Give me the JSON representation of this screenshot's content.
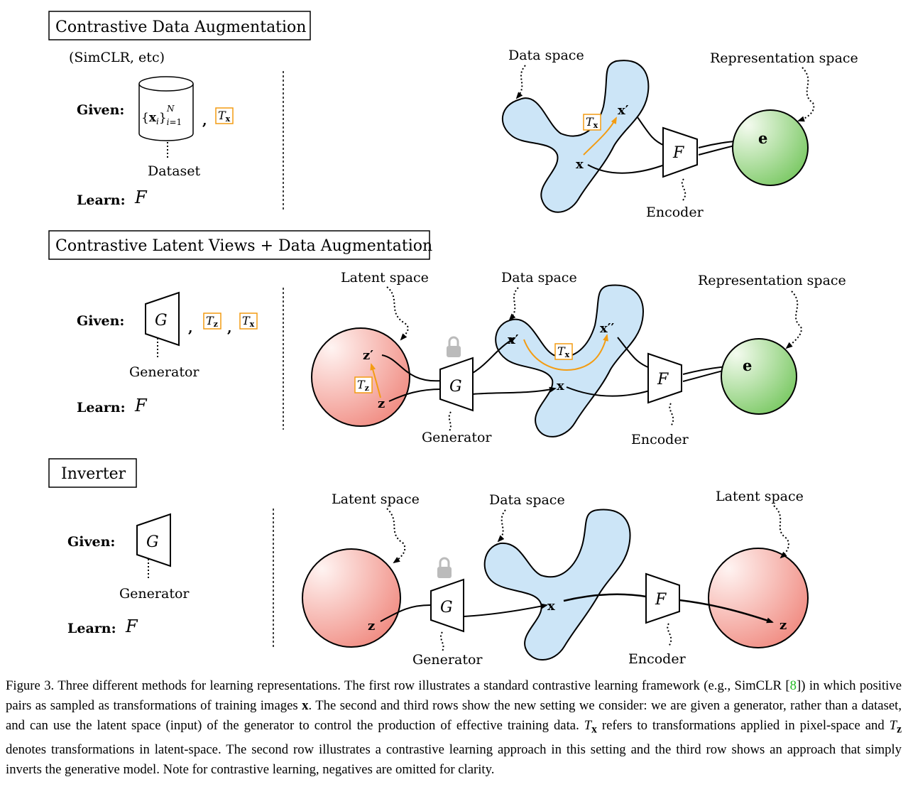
{
  "rows": [
    {
      "title": "Contrastive Data Augmentation",
      "subtitle": "(SimCLR, etc)",
      "given_label": "Given:",
      "dataset_formula": "{x_i}_{i=1}^N",
      "dataset_label": "Dataset",
      "learn_label": "Learn:",
      "learn_symbol": "F",
      "comma": ",",
      "tx_label": "T",
      "tx_sub": "x"
    },
    {
      "title": "Contrastive Latent Views + Data Augmentation",
      "given_label": "Given:",
      "generator_symbol": "G",
      "generator_label": "Generator",
      "learn_label": "Learn:",
      "learn_symbol": "F",
      "comma": ",",
      "tz_label": "T",
      "tz_sub": "z",
      "tx_label": "T",
      "tx_sub": "x"
    },
    {
      "title": "Inverter",
      "given_label": "Given:",
      "generator_symbol": "G",
      "generator_label": "Generator",
      "learn_label": "Learn:",
      "learn_symbol": "F"
    }
  ],
  "diagram1": {
    "data_space": "Data space",
    "representation_space": "Representation space",
    "encoder": "Encoder",
    "x": "x",
    "x_prime": "x′",
    "e": "e",
    "F": "F",
    "tx": "T",
    "tx_sub": "x"
  },
  "diagram2": {
    "latent_space": "Latent space",
    "data_space": "Data space",
    "representation_space": "Representation space",
    "generator": "Generator",
    "encoder": "Encoder",
    "z": "z",
    "z_prime": "z′",
    "x": "x",
    "x_prime": "x′",
    "x_dprime": "x′′",
    "e": "e",
    "G": "G",
    "F": "F",
    "tz": "T",
    "tz_sub": "z",
    "tx": "T",
    "tx_sub": "x"
  },
  "diagram3": {
    "latent_space_left": "Latent space",
    "data_space": "Data space",
    "latent_space_right": "Latent space",
    "generator": "Generator",
    "encoder": "Encoder",
    "z": "z",
    "x": "x",
    "z_out": "z",
    "G": "G",
    "F": "F"
  },
  "caption": {
    "p1": "Figure 3. Three different methods for learning representations. The first row illustrates a standard contrastive learning framework (e.g., SimCLR [",
    "ref": "8",
    "p2": "]) in which positive pairs as sampled as transformations of training images ",
    "x": "x",
    "p3": ". The second and third rows show the new setting we consider: we are given a generator, rather than a dataset, and can use the latent space (input) of the generator to control the production of effective training data. ",
    "tx": "T",
    "tx_sub": "x",
    "p4": " refers to transformations applied in pixel-space and ",
    "tz": "T",
    "tz_sub": "z",
    "p5": " denotes transformations in latent-space. The second row illustrates a contrastive learning approach in this setting and the third row shows an approach that simply inverts the generative model. Note for contrastive learning, negatives are omitted for clarity."
  },
  "colors": {
    "orange": "#f39c12",
    "blob_fill": "#cce5f7",
    "red_light": "#fff0ee",
    "red_dark": "#f08a80",
    "green_light": "#f0faea",
    "green_dark": "#7ccc66",
    "ref_green": "#22bb22"
  }
}
